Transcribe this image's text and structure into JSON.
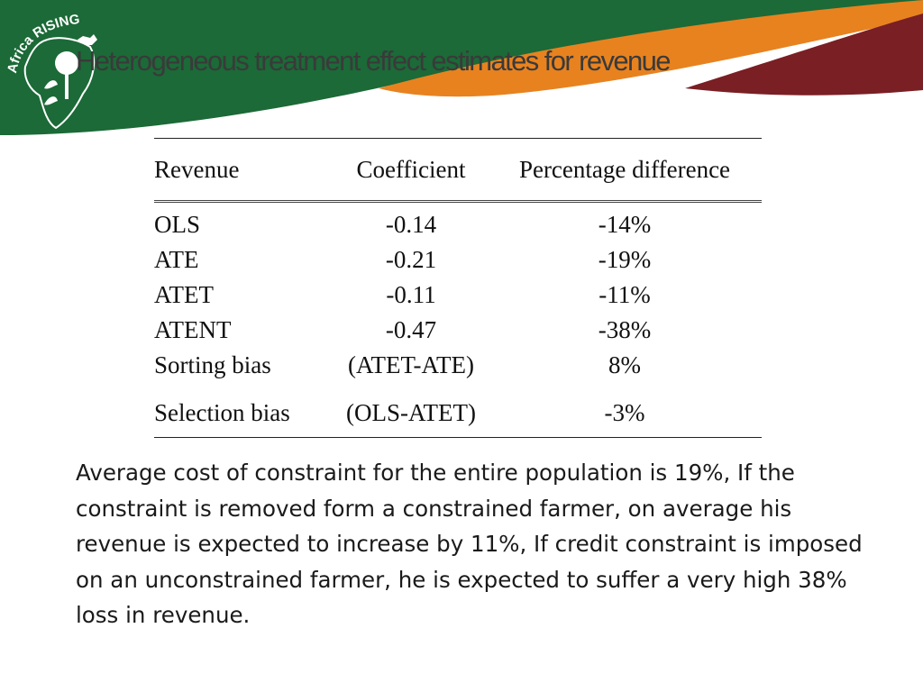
{
  "logo": {
    "text_line1": "Africa",
    "text_line2": "RISING"
  },
  "slide": {
    "title": "Heterogeneous treatment effect estimates for revenue"
  },
  "table": {
    "headers": [
      "Revenue",
      "Coefficient",
      "Percentage difference"
    ],
    "rows": [
      [
        "OLS",
        "-0.14",
        "-14%"
      ],
      [
        "ATE",
        "-0.21",
        "-19%"
      ],
      [
        "ATET",
        "-0.11",
        "-11%"
      ],
      [
        "ATENT",
        "-0.47",
        "-38%"
      ],
      [
        "Sorting bias",
        "(ATET-ATE)",
        "8%"
      ],
      [
        "Selection bias",
        "(OLS-ATET)",
        "-3%"
      ]
    ]
  },
  "summary": "Average cost of constraint for the entire population is 19%, If the constraint is removed form a constrained farmer, on average his revenue is expected to increase by 11%, If credit constraint is imposed on an unconstrained farmer, he is expected to suffer a very high 38% loss in revenue.",
  "colors": {
    "banner_green": "#1b6a37",
    "banner_orange": "#e8821f",
    "banner_maroon": "#7a1f24",
    "title_text": "#3a3a3a"
  }
}
